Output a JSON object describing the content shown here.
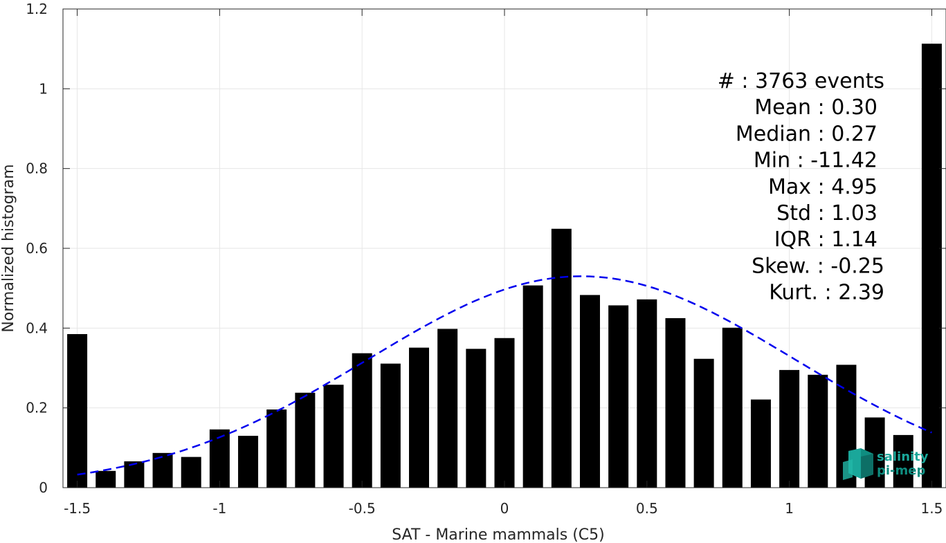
{
  "chart_data": {
    "type": "bar",
    "xlabel": "SAT - Marine mammals (C5)",
    "ylabel": "Normalized histogram",
    "xlim": [
      -1.55,
      1.55
    ],
    "ylim": [
      0,
      1.2
    ],
    "xticks": [
      -1.5,
      -1,
      -0.5,
      0,
      0.5,
      1,
      1.5
    ],
    "xtick_labels": [
      "-1.5",
      "-1",
      "-0.5",
      "0",
      "0.5",
      "1",
      "1.5"
    ],
    "yticks": [
      0,
      0.2,
      0.4,
      0.6,
      0.8,
      1,
      1.2
    ],
    "ytick_labels": [
      "0",
      "0.2",
      "0.4",
      "0.6",
      "0.8",
      "1",
      "1.2"
    ],
    "grid": true,
    "bar_color": "#000000",
    "bins": {
      "x": [
        -1.5,
        -1.4,
        -1.3,
        -1.2,
        -1.1,
        -1.0,
        -0.9,
        -0.8,
        -0.7,
        -0.6,
        -0.5,
        -0.4,
        -0.3,
        -0.2,
        -0.1,
        0.0,
        0.1,
        0.2,
        0.3,
        0.4,
        0.5,
        0.6,
        0.7,
        0.8,
        0.9,
        1.0,
        1.1,
        1.2,
        1.3,
        1.4,
        1.5
      ],
      "values": [
        0.385,
        0.042,
        0.066,
        0.087,
        0.077,
        0.146,
        0.13,
        0.196,
        0.238,
        0.258,
        0.337,
        0.311,
        0.351,
        0.398,
        0.348,
        0.375,
        0.507,
        0.649,
        0.483,
        0.457,
        0.472,
        0.425,
        0.323,
        0.401,
        0.221,
        0.295,
        0.283,
        0.308,
        0.176,
        0.132,
        1.113
      ]
    },
    "fit_curve": {
      "type": "gaussian",
      "style": "dashed",
      "color": "#0000ee",
      "x_range": [
        -1.5,
        1.5
      ],
      "peak": 0.53,
      "mean": 0.27,
      "sigma": 0.75
    },
    "stats": [
      {
        "label": "#  : 3763 events"
      },
      {
        "label": "Mean : 0.30"
      },
      {
        "label": "Median : 0.27"
      },
      {
        "label": "Min : -11.42"
      },
      {
        "label": "Max : 4.95"
      },
      {
        "label": "Std : 1.03"
      },
      {
        "label": "IQR : 1.14"
      },
      {
        "label": "Skew. : -0.25"
      },
      {
        "label": "Kurt. : 2.39"
      }
    ]
  },
  "logo": {
    "line1": "salinity",
    "line2": "pi-mep",
    "color": "#1aa79a"
  }
}
